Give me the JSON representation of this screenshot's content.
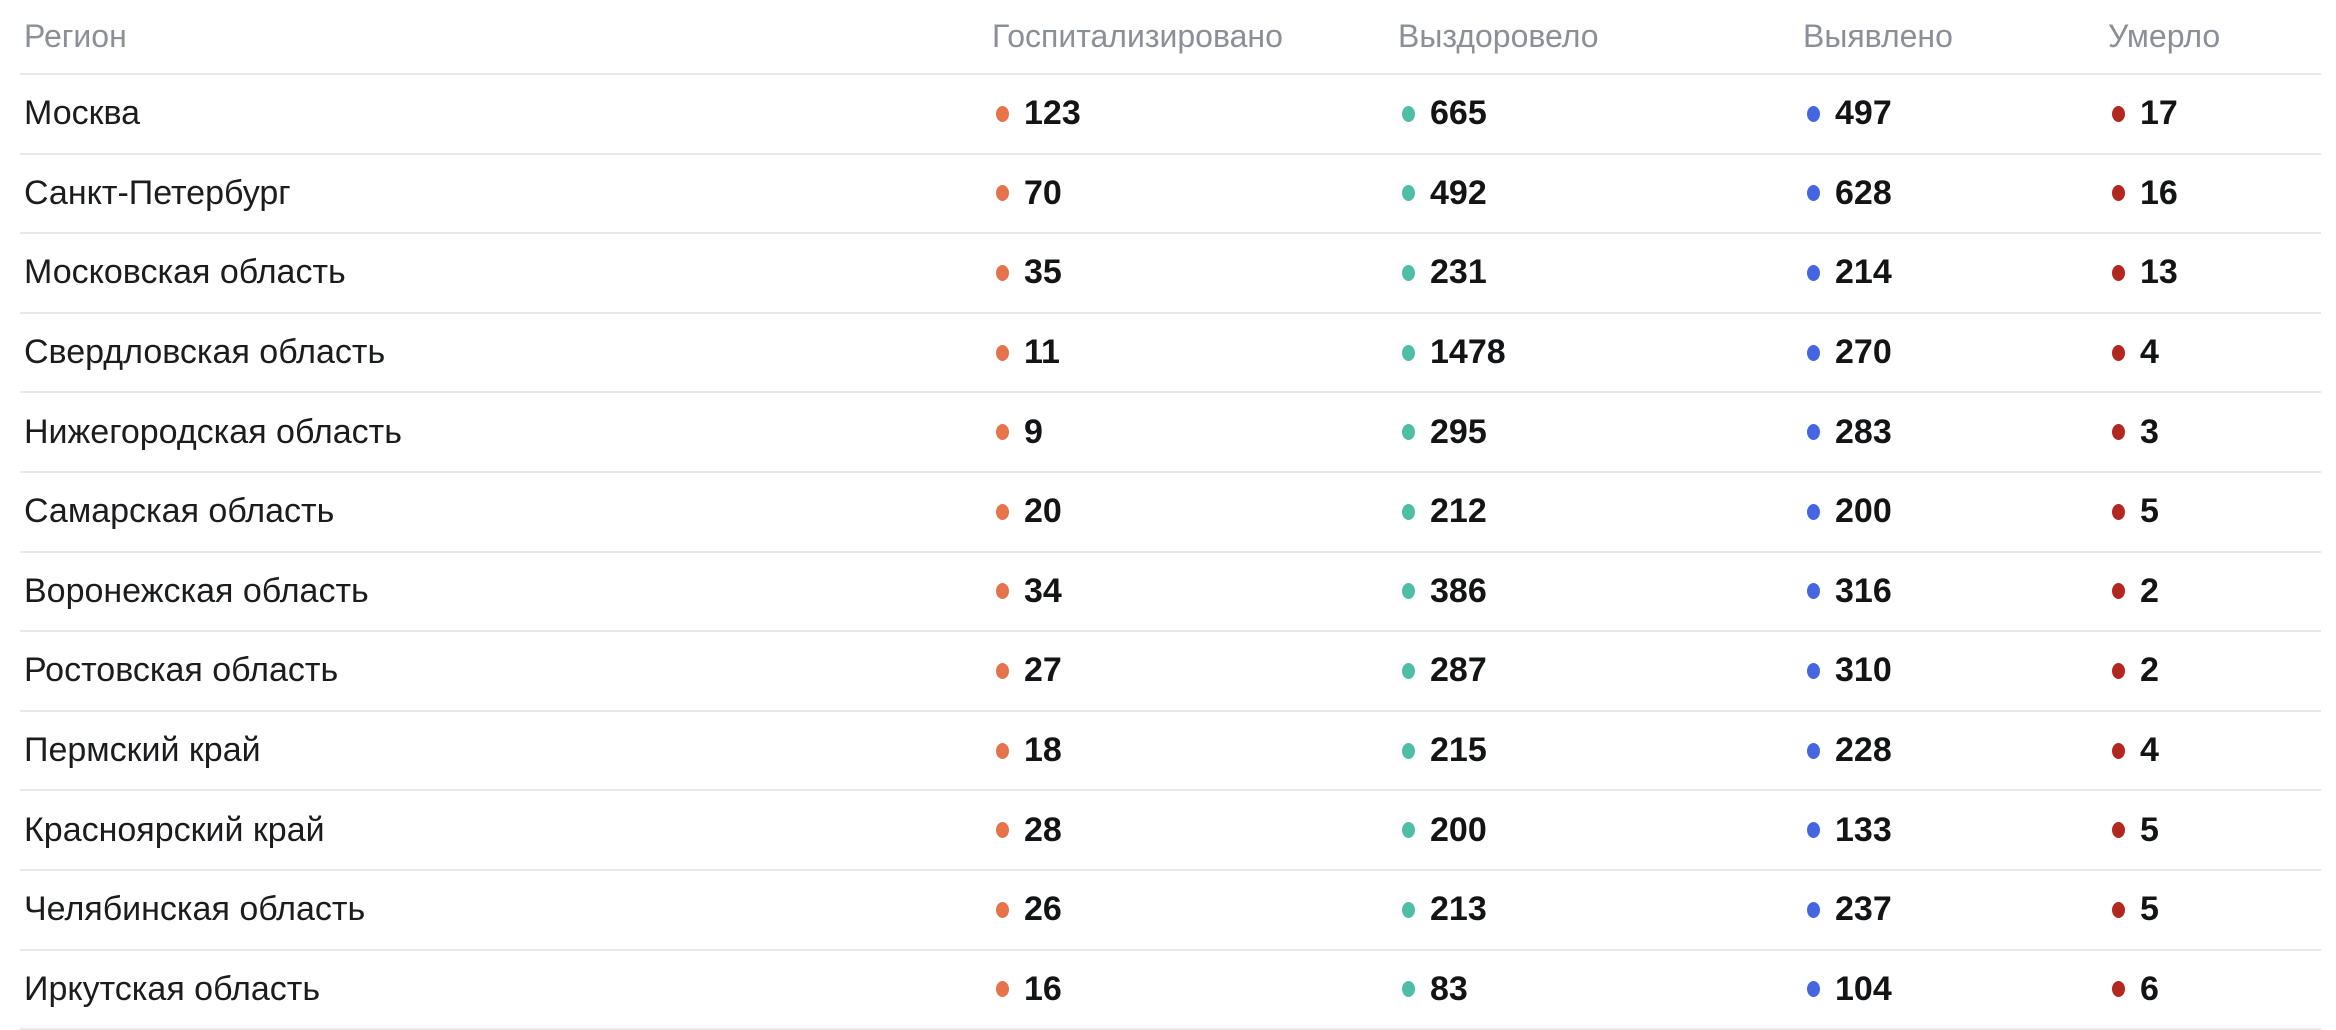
{
  "table": {
    "columns": [
      {
        "key": "region",
        "label": "Регион"
      },
      {
        "key": "hospitalized",
        "label": "Госпитализировано",
        "dot_color": "#E5734C"
      },
      {
        "key": "recovered",
        "label": "Выздоровело",
        "dot_color": "#4EBEA6"
      },
      {
        "key": "detected",
        "label": "Выявлено",
        "dot_color": "#4466E0"
      },
      {
        "key": "died",
        "label": "Умерло",
        "dot_color": "#B2271F"
      }
    ],
    "rows": [
      {
        "region": "Москва",
        "hospitalized": "123",
        "recovered": "665",
        "detected": "497",
        "died": "17"
      },
      {
        "region": "Санкт-Петербург",
        "hospitalized": "70",
        "recovered": "492",
        "detected": "628",
        "died": "16"
      },
      {
        "region": "Московская область",
        "hospitalized": "35",
        "recovered": "231",
        "detected": "214",
        "died": "13"
      },
      {
        "region": "Свердловская область",
        "hospitalized": "11",
        "recovered": "1478",
        "detected": "270",
        "died": "4"
      },
      {
        "region": "Нижегородская область",
        "hospitalized": "9",
        "recovered": "295",
        "detected": "283",
        "died": "3"
      },
      {
        "region": "Самарская область",
        "hospitalized": "20",
        "recovered": "212",
        "detected": "200",
        "died": "5"
      },
      {
        "region": "Воронежская область",
        "hospitalized": "34",
        "recovered": "386",
        "detected": "316",
        "died": "2"
      },
      {
        "region": "Ростовская область",
        "hospitalized": "27",
        "recovered": "287",
        "detected": "310",
        "died": "2"
      },
      {
        "region": "Пермский край",
        "hospitalized": "18",
        "recovered": "215",
        "detected": "228",
        "died": "4"
      },
      {
        "region": "Красноярский край",
        "hospitalized": "28",
        "recovered": "200",
        "detected": "133",
        "died": "5"
      },
      {
        "region": "Челябинская область",
        "hospitalized": "26",
        "recovered": "213",
        "detected": "237",
        "died": "5"
      },
      {
        "region": "Иркутская область",
        "hospitalized": "16",
        "recovered": "83",
        "detected": "104",
        "died": "6"
      }
    ]
  },
  "colors": {
    "background": "#FFFFFF",
    "header_text": "#8B8F97",
    "body_text": "#1B1C1E",
    "value_text": "#131416",
    "divider": "#E8E8EA",
    "dot_hospitalized": "#E5734C",
    "dot_recovered": "#4EBEA6",
    "dot_detected": "#4466E0",
    "dot_died": "#B2271F"
  },
  "chart_data": {
    "type": "table",
    "title": "",
    "columns": [
      "Регион",
      "Госпитализировано",
      "Выздоровело",
      "Выявлено",
      "Умерло"
    ],
    "rows": [
      [
        "Москва",
        123,
        665,
        497,
        17
      ],
      [
        "Санкт-Петербург",
        70,
        492,
        628,
        16
      ],
      [
        "Московская область",
        35,
        231,
        214,
        13
      ],
      [
        "Свердловская область",
        11,
        1478,
        270,
        4
      ],
      [
        "Нижегородская область",
        9,
        295,
        283,
        3
      ],
      [
        "Самарская область",
        20,
        212,
        200,
        5
      ],
      [
        "Воронежская область",
        34,
        386,
        316,
        2
      ],
      [
        "Ростовская область",
        27,
        287,
        310,
        2
      ],
      [
        "Пермский край",
        18,
        215,
        228,
        4
      ],
      [
        "Красноярский край",
        28,
        200,
        133,
        5
      ],
      [
        "Челябинская область",
        26,
        213,
        237,
        5
      ],
      [
        "Иркутская область",
        16,
        83,
        104,
        6
      ]
    ],
    "legend_position": "none",
    "grid": "horizontal-dividers"
  }
}
